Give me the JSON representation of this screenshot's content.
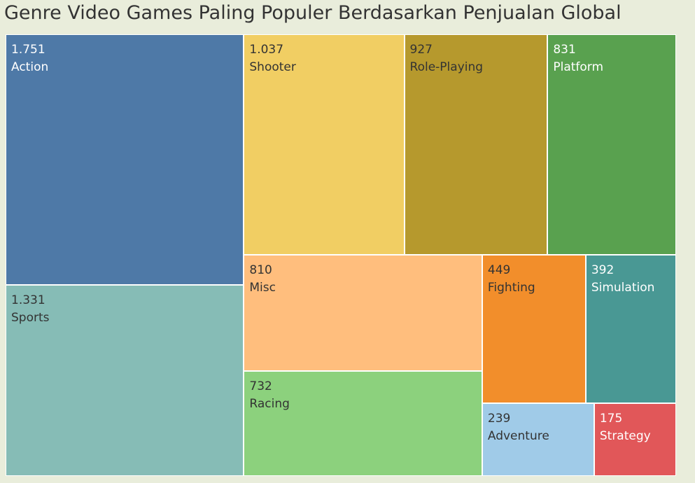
{
  "chart_data": {
    "type": "treemap",
    "title": "Genre Video Games Paling Populer Berdasarkan Penjualan Global",
    "items": [
      {
        "label": "Action",
        "value_text": "1.751",
        "value": 1751,
        "color": "#4e79a7",
        "text_color": "#ffffff"
      },
      {
        "label": "Sports",
        "value_text": "1.331",
        "value": 1331,
        "color": "#86bcb6",
        "text_color": "#333333"
      },
      {
        "label": "Shooter",
        "value_text": "1.037",
        "value": 1037,
        "color": "#f1ce63",
        "text_color": "#333333"
      },
      {
        "label": "Role-Playing",
        "value_text": "927",
        "value": 927,
        "color": "#b6992d",
        "text_color": "#333333"
      },
      {
        "label": "Platform",
        "value_text": "831",
        "value": 831,
        "color": "#59a14f",
        "text_color": "#ffffff"
      },
      {
        "label": "Misc",
        "value_text": "810",
        "value": 810,
        "color": "#ffbe7d",
        "text_color": "#333333"
      },
      {
        "label": "Racing",
        "value_text": "732",
        "value": 732,
        "color": "#8cd17d",
        "text_color": "#333333"
      },
      {
        "label": "Fighting",
        "value_text": "449",
        "value": 449,
        "color": "#f28e2b",
        "text_color": "#333333"
      },
      {
        "label": "Simulation",
        "value_text": "392",
        "value": 392,
        "color": "#499894",
        "text_color": "#ffffff"
      },
      {
        "label": "Adventure",
        "value_text": "239",
        "value": 239,
        "color": "#a0cbe8",
        "text_color": "#333333"
      },
      {
        "label": "Strategy",
        "value_text": "175",
        "value": 175,
        "color": "#e15759",
        "text_color": "#ffffff"
      }
    ]
  }
}
